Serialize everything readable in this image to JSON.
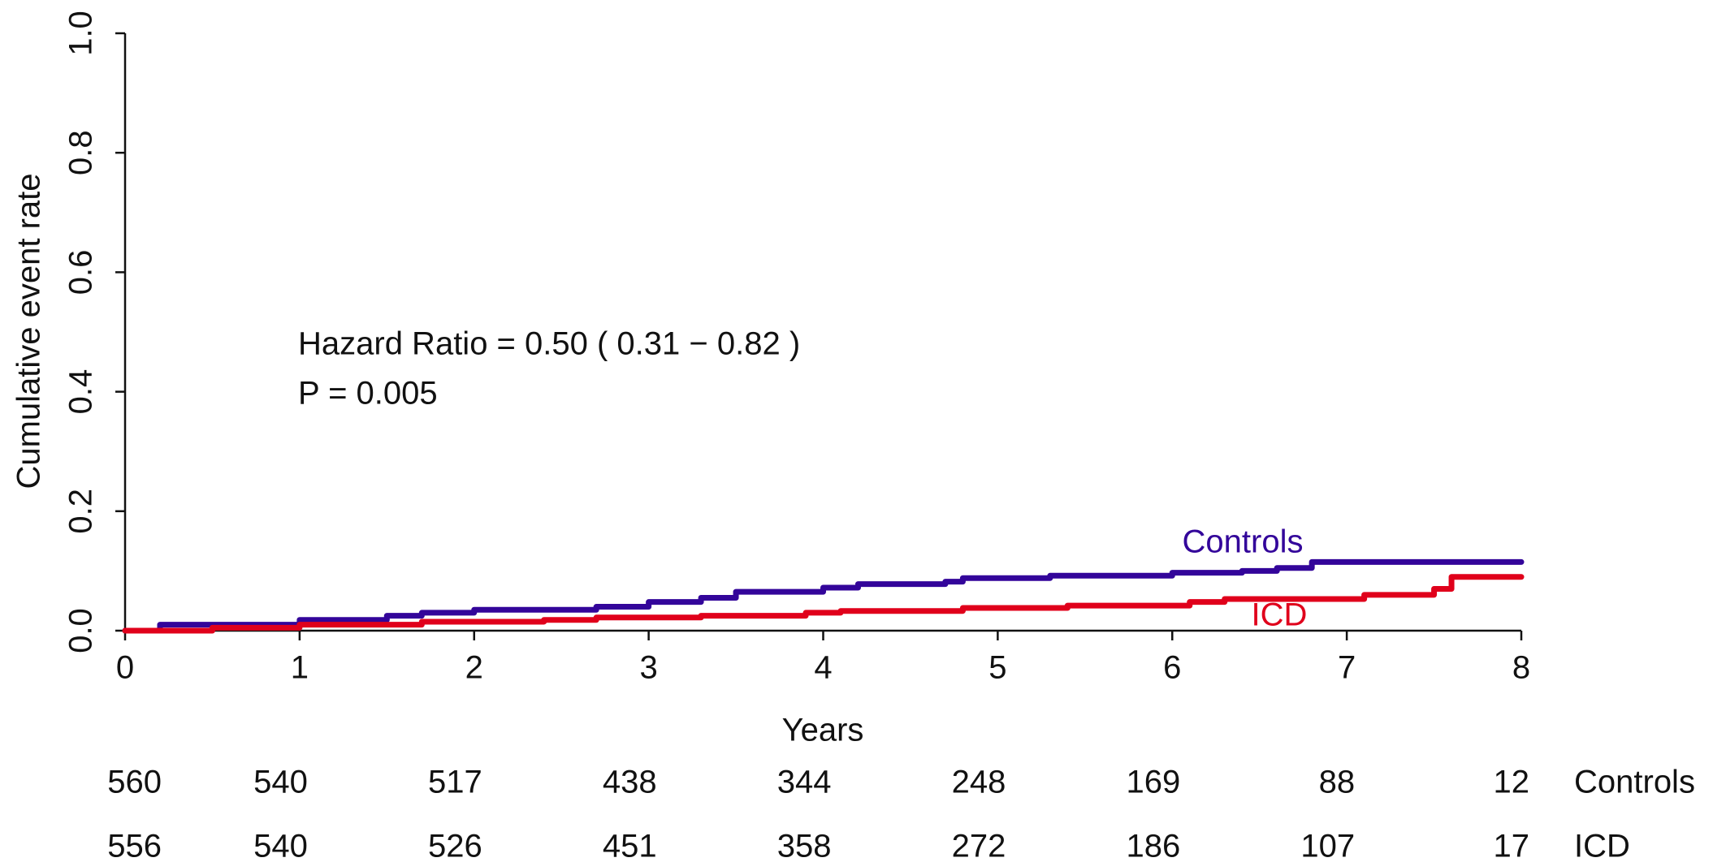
{
  "chart_data": {
    "type": "line",
    "step": "post",
    "xlabel": "Years",
    "ylabel": "Cumulative event rate",
    "xlim": [
      0,
      8
    ],
    "ylim": [
      0,
      1
    ],
    "xticks": [
      0,
      1,
      2,
      3,
      4,
      5,
      6,
      7,
      8
    ],
    "yticks": [
      {
        "value": 0,
        "label": "0.0"
      },
      {
        "value": 0.2,
        "label": "0.2"
      },
      {
        "value": 0.4,
        "label": "0.4"
      },
      {
        "value": 0.6,
        "label": "0.6"
      },
      {
        "value": 0.8,
        "label": "0.8"
      },
      {
        "value": 1,
        "label": "1.0"
      }
    ],
    "annotations": [
      "Hazard Ratio =  0.50  ( 0.31 − 0.82 )",
      "P =  0.005"
    ],
    "series": [
      {
        "name": "Controls",
        "color": "#33059a",
        "x": [
          0,
          0.2,
          1,
          1.5,
          1.7,
          2,
          2.7,
          3,
          3.3,
          3.5,
          4,
          4.2,
          4.7,
          4.8,
          5.3,
          6,
          6.4,
          6.6,
          6.8,
          8
        ],
        "values": [
          0,
          0.01,
          0.018,
          0.025,
          0.03,
          0.035,
          0.04,
          0.048,
          0.055,
          0.065,
          0.072,
          0.078,
          0.082,
          0.088,
          0.092,
          0.097,
          0.1,
          0.105,
          0.115,
          0.115
        ]
      },
      {
        "name": "ICD",
        "color": "#e0001b",
        "x": [
          0,
          0.5,
          1,
          1.7,
          2.4,
          2.7,
          3.3,
          3.9,
          4.1,
          4.8,
          5.4,
          6.1,
          6.3,
          7.1,
          7.5,
          7.6,
          8
        ],
        "values": [
          0,
          0.005,
          0.01,
          0.015,
          0.018,
          0.022,
          0.025,
          0.03,
          0.033,
          0.038,
          0.042,
          0.048,
          0.053,
          0.06,
          0.07,
          0.09,
          0.09
        ]
      }
    ],
    "risk_table": [
      {
        "name": "Controls",
        "values": [
          "560",
          "540",
          "517",
          "438",
          "344",
          "248",
          "169",
          "88",
          "12"
        ]
      },
      {
        "name": "ICD",
        "values": [
          "556",
          "540",
          "526",
          "451",
          "358",
          "272",
          "186",
          "107",
          "17"
        ]
      }
    ]
  }
}
